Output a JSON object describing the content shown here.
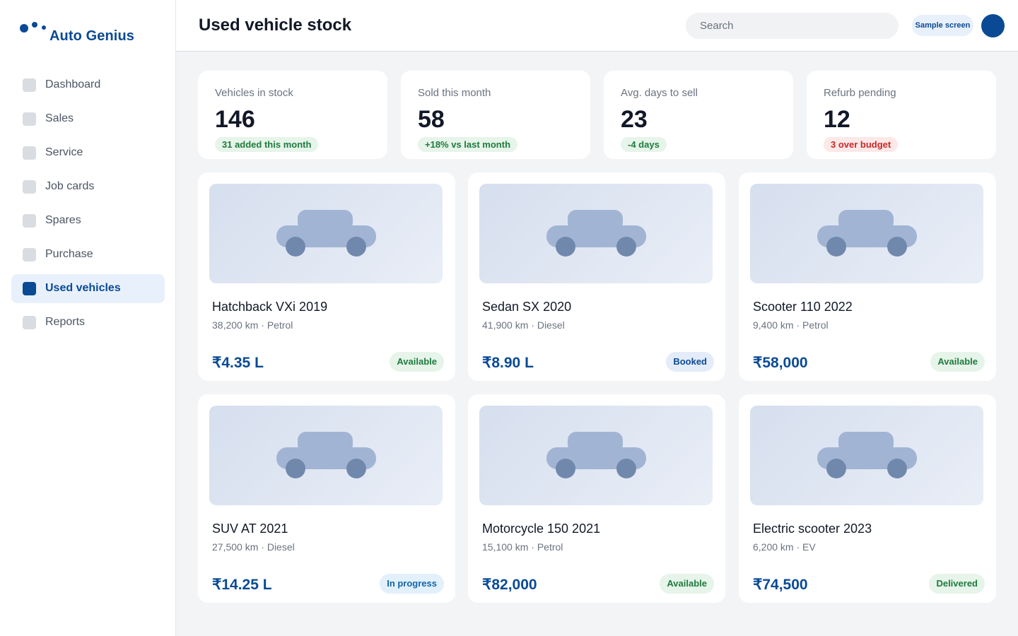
{
  "brand": {
    "name": "Auto Genius"
  },
  "nav": {
    "items": [
      {
        "label": "Dashboard",
        "active": false
      },
      {
        "label": "Sales",
        "active": false
      },
      {
        "label": "Service",
        "active": false
      },
      {
        "label": "Job cards",
        "active": false
      },
      {
        "label": "Spares",
        "active": false
      },
      {
        "label": "Purchase",
        "active": false
      },
      {
        "label": "Used vehicles",
        "active": true
      },
      {
        "label": "Reports",
        "active": false
      }
    ]
  },
  "header": {
    "title": "Used vehicle stock",
    "search_placeholder": "Search",
    "sample_label": "Sample screen"
  },
  "stats": [
    {
      "label": "Vehicles in stock",
      "value": "146",
      "badge": "31 added this month",
      "badge_tone": "green"
    },
    {
      "label": "Sold this month",
      "value": "58",
      "badge": "+18% vs last month",
      "badge_tone": "green"
    },
    {
      "label": "Avg. days to sell",
      "value": "23",
      "badge": "-4 days",
      "badge_tone": "green"
    },
    {
      "label": "Refurb pending",
      "value": "12",
      "badge": "3 over budget",
      "badge_tone": "red"
    }
  ],
  "vehicles": [
    {
      "name": "Hatchback VXi 2019",
      "km": "38,200 km",
      "fuel": "Petrol",
      "price": "₹4.35 L",
      "status": "Available"
    },
    {
      "name": "Sedan SX 2020",
      "km": "41,900 km",
      "fuel": "Diesel",
      "price": "₹8.90 L",
      "status": "Booked"
    },
    {
      "name": "Scooter 110 2022",
      "km": "9,400 km",
      "fuel": "Petrol",
      "price": "₹58,000",
      "status": "Available"
    },
    {
      "name": "SUV AT 2021",
      "km": "27,500 km",
      "fuel": "Diesel",
      "price": "₹14.25 L",
      "status": "In progress"
    },
    {
      "name": "Motorcycle 150 2021",
      "km": "15,100 km",
      "fuel": "Petrol",
      "price": "₹82,000",
      "status": "Available"
    },
    {
      "name": "Electric scooter 2023",
      "km": "6,200 km",
      "fuel": "EV",
      "price": "₹74,500",
      "status": "Delivered"
    }
  ],
  "colors": {
    "brand": "#0a4a94",
    "page_background": "#f3f4f6",
    "status_green": "#1e7b3c",
    "status_red": "#c62828"
  }
}
